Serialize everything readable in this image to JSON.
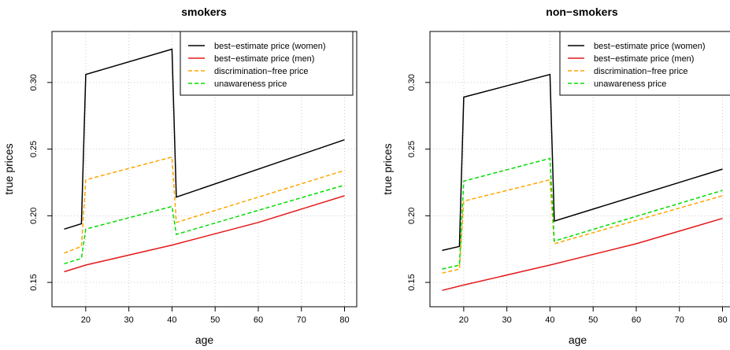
{
  "chart_data": [
    {
      "type": "line",
      "title": "smokers",
      "xlabel": "age",
      "ylabel": "true prices",
      "xlim": [
        15,
        80
      ],
      "ylim": [
        0.13,
        0.34
      ],
      "xticks": [
        "20",
        "30",
        "40",
        "50",
        "60",
        "70",
        "80"
      ],
      "yticks": [
        "0.15",
        "0.20",
        "0.25",
        "0.30"
      ],
      "legend_position": "top-right",
      "grid": true,
      "series": [
        {
          "name": "best−estimate price (women)",
          "color": "#000000",
          "dash": "solid",
          "x": [
            15,
            19,
            20,
            40,
            41,
            80
          ],
          "y": [
            0.19,
            0.194,
            0.306,
            0.325,
            0.214,
            0.257
          ]
        },
        {
          "name": "best−estimate price (men)",
          "color": "#e41a1c",
          "dash": "solid",
          "x": [
            15,
            20,
            40,
            60,
            80
          ],
          "y": [
            0.158,
            0.163,
            0.178,
            0.195,
            0.215
          ]
        },
        {
          "name": "discrimination−free price",
          "color": "#ffa500",
          "dash": "dashed",
          "x": [
            15,
            19,
            20,
            40,
            41,
            80
          ],
          "y": [
            0.172,
            0.177,
            0.227,
            0.244,
            0.195,
            0.234
          ]
        },
        {
          "name": "unawareness price",
          "color": "#00dd00",
          "dash": "dashed",
          "x": [
            15,
            19,
            20,
            40,
            41,
            80
          ],
          "y": [
            0.164,
            0.168,
            0.19,
            0.207,
            0.186,
            0.223
          ]
        }
      ]
    },
    {
      "type": "line",
      "title": "non−smokers",
      "xlabel": "age",
      "ylabel": "true prices",
      "xlim": [
        15,
        80
      ],
      "ylim": [
        0.13,
        0.34
      ],
      "xticks": [
        "20",
        "30",
        "40",
        "50",
        "60",
        "70",
        "80"
      ],
      "yticks": [
        "0.15",
        "0.20",
        "0.25",
        "0.30"
      ],
      "legend_position": "top-right",
      "grid": true,
      "series": [
        {
          "name": "best−estimate price (women)",
          "color": "#000000",
          "dash": "solid",
          "x": [
            15,
            19,
            20,
            40,
            41,
            80
          ],
          "y": [
            0.174,
            0.177,
            0.289,
            0.306,
            0.196,
            0.235
          ]
        },
        {
          "name": "best−estimate price (men)",
          "color": "#e41a1c",
          "dash": "solid",
          "x": [
            15,
            20,
            40,
            60,
            80
          ],
          "y": [
            0.144,
            0.148,
            0.163,
            0.179,
            0.198
          ]
        },
        {
          "name": "discrimination−free price",
          "color": "#ffa500",
          "dash": "dashed",
          "x": [
            15,
            19,
            20,
            40,
            41,
            80
          ],
          "y": [
            0.157,
            0.16,
            0.211,
            0.227,
            0.179,
            0.215
          ]
        },
        {
          "name": "unawareness price",
          "color": "#00dd00",
          "dash": "dashed",
          "x": [
            15,
            19,
            20,
            40,
            41,
            80
          ],
          "y": [
            0.16,
            0.163,
            0.226,
            0.243,
            0.181,
            0.219
          ]
        }
      ]
    }
  ]
}
